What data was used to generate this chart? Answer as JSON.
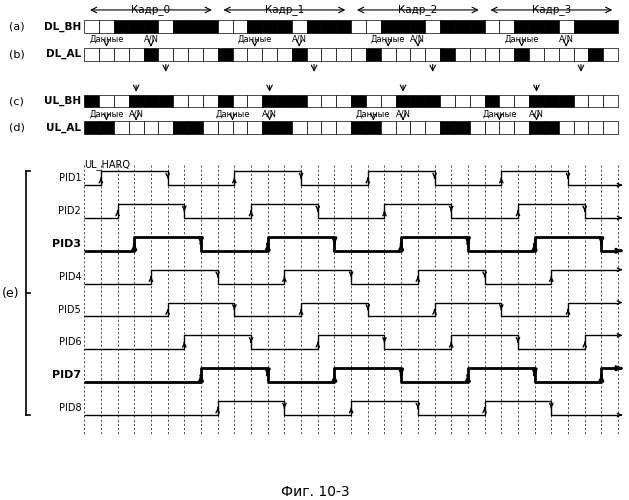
{
  "title": "Фиг. 10-3",
  "frame_labels": [
    "Кадр_0",
    "Кадр_1",
    "Кадр_2",
    "Кадр_3"
  ],
  "signal_labels": [
    "DL_BH",
    "DL_AL",
    "UL_BH",
    "UL_AL"
  ],
  "pid_labels": [
    "PID1",
    "PID2",
    "PID3",
    "PID4",
    "PID5",
    "PID6",
    "PID7",
    "PID8"
  ],
  "pid_bold": [
    2,
    6
  ],
  "e_label": "(e)",
  "ul_harq_label": "UL_HARQ",
  "dannie_label": "Данные",
  "an_label": "A/N",
  "background_color": "#ffffff",
  "black_color": "#000000",
  "dl_bh_pattern": [
    0,
    0,
    1,
    1,
    1,
    0,
    1,
    1,
    1,
    0,
    0,
    1,
    1,
    1,
    0,
    1,
    1,
    1,
    0,
    0,
    1,
    1,
    1,
    0,
    1,
    1,
    1,
    0,
    0,
    1,
    1,
    1,
    0,
    1,
    1,
    1
  ],
  "dl_al_pattern": [
    0,
    0,
    0,
    0,
    1,
    0,
    0,
    0,
    0,
    1,
    0,
    0,
    0,
    0,
    1,
    0,
    0,
    0,
    0,
    1,
    0,
    0,
    0,
    0,
    1,
    0,
    0,
    0,
    0,
    1,
    0,
    0,
    0,
    0,
    1,
    0
  ],
  "ul_bh_pattern": [
    1,
    0,
    0,
    1,
    1,
    1,
    0,
    0,
    0,
    1,
    0,
    0,
    1,
    1,
    1,
    0,
    0,
    0,
    1,
    0,
    0,
    1,
    1,
    1,
    0,
    0,
    0,
    1,
    0,
    0,
    1,
    1,
    1,
    0,
    0,
    0
  ],
  "ul_al_pattern": [
    1,
    1,
    0,
    0,
    0,
    0,
    1,
    1,
    0,
    0,
    0,
    0,
    1,
    1,
    0,
    0,
    0,
    0,
    1,
    1,
    0,
    0,
    0,
    0,
    1,
    1,
    0,
    0,
    0,
    0,
    1,
    1,
    0,
    0,
    0,
    0
  ]
}
